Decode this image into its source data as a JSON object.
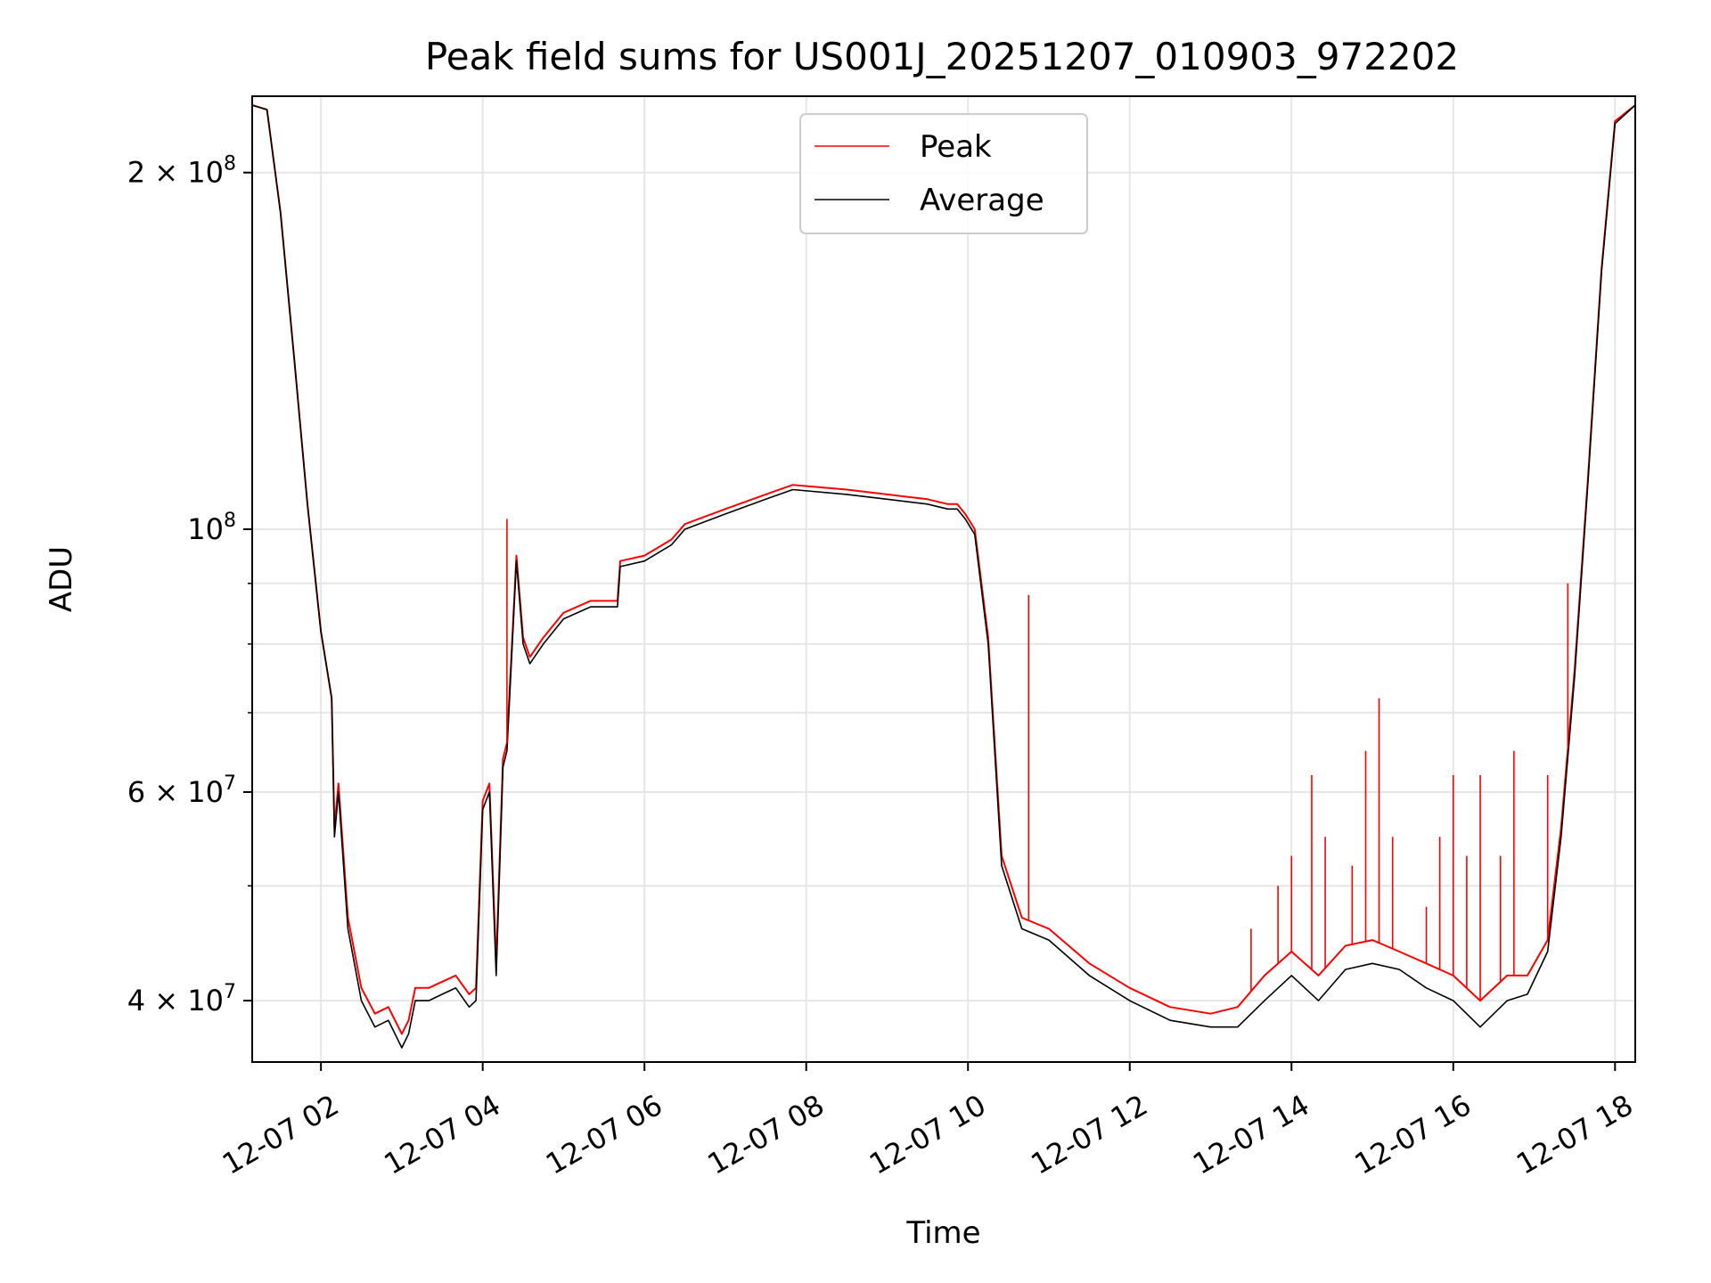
{
  "chart_data": {
    "type": "line",
    "title": "Peak field sums for US001J_20251207_010903_972202",
    "xlabel": "Time",
    "ylabel": "ADU",
    "yscale": "log",
    "xlim": [
      "2025-12-07 01:09",
      "2025-12-07 18:15"
    ],
    "ylim": [
      35500000,
      232000000
    ],
    "grid": true,
    "legend": {
      "placement": "top-center",
      "entries": [
        "Peak",
        "Average"
      ]
    },
    "x_ticks": [
      {
        "value": "2025-12-07 02:00",
        "label": "12-07 02"
      },
      {
        "value": "2025-12-07 04:00",
        "label": "12-07 04"
      },
      {
        "value": "2025-12-07 06:00",
        "label": "12-07 06"
      },
      {
        "value": "2025-12-07 08:00",
        "label": "12-07 08"
      },
      {
        "value": "2025-12-07 10:00",
        "label": "12-07 10"
      },
      {
        "value": "2025-12-07 12:00",
        "label": "12-07 12"
      },
      {
        "value": "2025-12-07 14:00",
        "label": "12-07 14"
      },
      {
        "value": "2025-12-07 16:00",
        "label": "12-07 16"
      },
      {
        "value": "2025-12-07 18:00",
        "label": "12-07 18"
      }
    ],
    "y_major_ticks": [
      {
        "value": 40000000,
        "mantissa": "4",
        "exp": "7"
      },
      {
        "value": 60000000,
        "mantissa": "6",
        "exp": "7"
      },
      {
        "value": 100000000,
        "mantissa": "",
        "exp": "8"
      },
      {
        "value": 200000000,
        "mantissa": "2",
        "exp": "8"
      }
    ],
    "y_minor_gridlines": [
      50000000,
      70000000,
      80000000,
      90000000
    ],
    "x": [
      "2025-12-07 01:09",
      "2025-12-07 01:20",
      "2025-12-07 01:30",
      "2025-12-07 01:40",
      "2025-12-07 01:50",
      "2025-12-07 02:00",
      "2025-12-07 02:08",
      "2025-12-07 02:10",
      "2025-12-07 02:13",
      "2025-12-07 02:20",
      "2025-12-07 02:30",
      "2025-12-07 02:40",
      "2025-12-07 02:50",
      "2025-12-07 03:00",
      "2025-12-07 03:05",
      "2025-12-07 03:10",
      "2025-12-07 03:20",
      "2025-12-07 03:30",
      "2025-12-07 03:40",
      "2025-12-07 03:50",
      "2025-12-07 03:55",
      "2025-12-07 04:00",
      "2025-12-07 04:05",
      "2025-12-07 04:10",
      "2025-12-07 04:15",
      "2025-12-07 04:18",
      "2025-12-07 04:25",
      "2025-12-07 04:30",
      "2025-12-07 04:35",
      "2025-12-07 04:45",
      "2025-12-07 05:00",
      "2025-12-07 05:20",
      "2025-12-07 05:40",
      "2025-12-07 05:42",
      "2025-12-07 06:00",
      "2025-12-07 06:20",
      "2025-12-07 06:30",
      "2025-12-07 07:00",
      "2025-12-07 07:30",
      "2025-12-07 07:50",
      "2025-12-07 08:30",
      "2025-12-07 09:00",
      "2025-12-07 09:30",
      "2025-12-07 09:45",
      "2025-12-07 09:52",
      "2025-12-07 09:58",
      "2025-12-07 10:05",
      "2025-12-07 10:15",
      "2025-12-07 10:25",
      "2025-12-07 10:40",
      "2025-12-07 11:00",
      "2025-12-07 11:30",
      "2025-12-07 12:00",
      "2025-12-07 12:30",
      "2025-12-07 13:00",
      "2025-12-07 13:20",
      "2025-12-07 13:40",
      "2025-12-07 14:00",
      "2025-12-07 14:20",
      "2025-12-07 14:40",
      "2025-12-07 15:00",
      "2025-12-07 15:20",
      "2025-12-07 15:40",
      "2025-12-07 16:00",
      "2025-12-07 16:20",
      "2025-12-07 16:40",
      "2025-12-07 16:55",
      "2025-12-07 17:10",
      "2025-12-07 17:20",
      "2025-12-07 17:30",
      "2025-12-07 17:40",
      "2025-12-07 17:50",
      "2025-12-07 18:00",
      "2025-12-07 18:15"
    ],
    "series": [
      {
        "name": "Average",
        "color": "#000000",
        "values": [
          228000000,
          226000000,
          185000000,
          140000000,
          105000000,
          82000000,
          72000000,
          55000000,
          60000000,
          46000000,
          40000000,
          38000000,
          38500000,
          36500000,
          37500000,
          40000000,
          40000000,
          40500000,
          41000000,
          39500000,
          40000000,
          58000000,
          60000000,
          42000000,
          63000000,
          65000000,
          94000000,
          80000000,
          77000000,
          80000000,
          84000000,
          86000000,
          86000000,
          93000000,
          94000000,
          97000000,
          100000000,
          103000000,
          106000000,
          108000000,
          107000000,
          106000000,
          105000000,
          104000000,
          104000000,
          102000000,
          99000000,
          80000000,
          52000000,
          46000000,
          45000000,
          42000000,
          40000000,
          38500000,
          38000000,
          38000000,
          40000000,
          42000000,
          40000000,
          42500000,
          43000000,
          42500000,
          41000000,
          40000000,
          38000000,
          40000000,
          40500000,
          44000000,
          55000000,
          75000000,
          110000000,
          165000000,
          220000000,
          228000000
        ]
      },
      {
        "name": "Peak",
        "color": "#ff0000",
        "values": [
          228000000,
          226000000,
          185000000,
          140000000,
          105000000,
          82000000,
          72000000,
          56000000,
          61000000,
          47000000,
          41000000,
          39000000,
          39500000,
          37500000,
          38500000,
          41000000,
          41000000,
          41500000,
          42000000,
          40500000,
          41000000,
          59000000,
          61000000,
          43000000,
          64000000,
          66000000,
          95000000,
          81000000,
          78000000,
          81000000,
          85000000,
          87000000,
          87000000,
          94000000,
          95000000,
          98000000,
          101000000,
          104000000,
          107000000,
          109000000,
          108000000,
          107000000,
          106000000,
          105000000,
          105000000,
          103000000,
          100000000,
          81000000,
          53000000,
          47000000,
          46000000,
          43000000,
          41000000,
          39500000,
          39000000,
          39500000,
          42000000,
          44000000,
          42000000,
          44500000,
          45000000,
          44000000,
          43000000,
          42000000,
          40000000,
          42000000,
          42000000,
          45000000,
          56000000,
          76000000,
          111000000,
          166000000,
          221000000,
          228000000
        ]
      }
    ],
    "peak_spikes": [
      {
        "x": "2025-12-07 04:18",
        "y": 102000000
      },
      {
        "x": "2025-12-07 10:45",
        "y": 88000000
      },
      {
        "x": "2025-12-07 13:30",
        "y": 46000000
      },
      {
        "x": "2025-12-07 13:50",
        "y": 50000000
      },
      {
        "x": "2025-12-07 14:00",
        "y": 53000000
      },
      {
        "x": "2025-12-07 14:15",
        "y": 62000000
      },
      {
        "x": "2025-12-07 14:25",
        "y": 55000000
      },
      {
        "x": "2025-12-07 14:45",
        "y": 52000000
      },
      {
        "x": "2025-12-07 14:55",
        "y": 65000000
      },
      {
        "x": "2025-12-07 15:05",
        "y": 72000000
      },
      {
        "x": "2025-12-07 15:15",
        "y": 55000000
      },
      {
        "x": "2025-12-07 15:40",
        "y": 48000000
      },
      {
        "x": "2025-12-07 15:50",
        "y": 55000000
      },
      {
        "x": "2025-12-07 16:00",
        "y": 62000000
      },
      {
        "x": "2025-12-07 16:10",
        "y": 53000000
      },
      {
        "x": "2025-12-07 16:20",
        "y": 62000000
      },
      {
        "x": "2025-12-07 16:35",
        "y": 53000000
      },
      {
        "x": "2025-12-07 16:45",
        "y": 65000000
      },
      {
        "x": "2025-12-07 17:10",
        "y": 62000000
      },
      {
        "x": "2025-12-07 17:25",
        "y": 90000000
      }
    ]
  }
}
